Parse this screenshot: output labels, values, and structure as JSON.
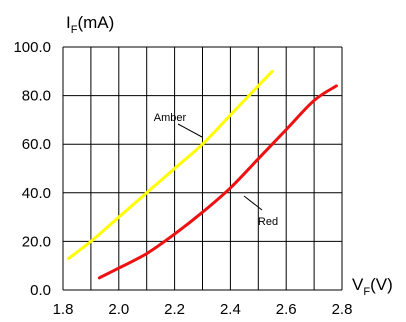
{
  "chart_data": {
    "type": "line",
    "y_axis": {
      "label_main": "I",
      "label_sub": "F",
      "label_unit": "(mA)"
    },
    "x_axis": {
      "label_main": "V",
      "label_sub": "F",
      "label_unit": "(V)"
    },
    "xlim": [
      1.8,
      2.8
    ],
    "ylim": [
      0,
      100
    ],
    "x_ticks": [
      1.8,
      1.9,
      2.0,
      2.1,
      2.2,
      2.3,
      2.4,
      2.5,
      2.6,
      2.7,
      2.8
    ],
    "x_tick_labels": [
      "1.8",
      "2.0",
      "2.2",
      "2.4",
      "2.6",
      "2.8"
    ],
    "x_tick_label_values": [
      1.8,
      2.0,
      2.2,
      2.4,
      2.6,
      2.8
    ],
    "y_ticks": [
      0,
      20,
      40,
      60,
      80,
      100
    ],
    "y_tick_labels": [
      "0.0",
      "20.0",
      "40.0",
      "60.0",
      "80.0",
      "100.0"
    ],
    "grid": true,
    "series": [
      {
        "name": "Amber",
        "color": "#ffff00",
        "x": [
          1.82,
          1.9,
          2.0,
          2.1,
          2.2,
          2.3,
          2.4,
          2.5,
          2.55
        ],
        "y": [
          13,
          20,
          30,
          40,
          50,
          60,
          72,
          84,
          90
        ]
      },
      {
        "name": "Red",
        "color": "#ee1111",
        "x": [
          1.93,
          2.0,
          2.1,
          2.2,
          2.3,
          2.4,
          2.5,
          2.6,
          2.7,
          2.78
        ],
        "y": [
          5,
          9,
          15,
          23,
          32,
          42,
          54,
          66,
          78,
          84
        ]
      }
    ]
  }
}
